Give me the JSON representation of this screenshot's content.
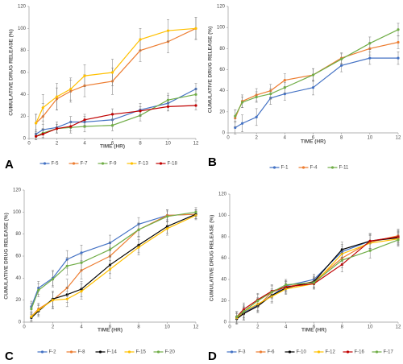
{
  "chart_data": [
    {
      "type": "line",
      "panel": "A",
      "x_label": "TIME (HR)",
      "y_label": "CUMULATIVE DRUG RELEASE (%)",
      "x": [
        0.5,
        1,
        2,
        3,
        4,
        6,
        8,
        10,
        12
      ],
      "xlim": [
        0,
        12
      ],
      "xticks": [
        0,
        2,
        4,
        6,
        8,
        10,
        12
      ],
      "ylim": [
        0,
        120
      ],
      "yticks": [
        0,
        20,
        40,
        60,
        80,
        100,
        120
      ],
      "grid": false,
      "series": [
        {
          "name": "F-5",
          "color": "#4472c4",
          "values": [
            4,
            8,
            10,
            15,
            15,
            17,
            26,
            32,
            45
          ],
          "errors": [
            4,
            5,
            5,
            5,
            5,
            6,
            6,
            7,
            5
          ]
        },
        {
          "name": "F-7",
          "color": "#ed7d31",
          "values": [
            14,
            20,
            36,
            43,
            48,
            52,
            80,
            88,
            100
          ],
          "errors": [
            8,
            12,
            10,
            10,
            10,
            12,
            10,
            10,
            10
          ]
        },
        {
          "name": "F-9",
          "color": "#70ad47",
          "values": [
            2,
            5,
            9,
            10,
            11,
            12,
            21,
            35,
            40
          ],
          "errors": [
            3,
            4,
            4,
            5,
            5,
            5,
            5,
            6,
            5
          ]
        },
        {
          "name": "F-13",
          "color": "#ffc000",
          "values": [
            14,
            28,
            38,
            45,
            57,
            60,
            90,
            98,
            100
          ],
          "errors": [
            8,
            12,
            12,
            10,
            10,
            12,
            10,
            10,
            10
          ]
        },
        {
          "name": "F-18",
          "color": "#c00000",
          "values": [
            2,
            4,
            9,
            11,
            17,
            22,
            25,
            29,
            30
          ],
          "errors": [
            3,
            4,
            4,
            4,
            5,
            5,
            4,
            4,
            4
          ]
        }
      ]
    },
    {
      "type": "line",
      "panel": "B",
      "x_label": "TIME (HR)",
      "y_label": "CUMULATIVE DRUG RELEASE (%)",
      "x": [
        0.5,
        1,
        2,
        3,
        4,
        6,
        8,
        10,
        12
      ],
      "xlim": [
        0,
        12
      ],
      "xticks": [
        0,
        2,
        4,
        6,
        8,
        10,
        12
      ],
      "ylim": [
        0,
        120
      ],
      "yticks": [
        0,
        20,
        40,
        60,
        80,
        100,
        120
      ],
      "grid": false,
      "series": [
        {
          "name": "F-1",
          "color": "#4472c4",
          "values": [
            5,
            9,
            15,
            33,
            37,
            43,
            64,
            71,
            71
          ],
          "errors": [
            6,
            8,
            8,
            6,
            6,
            7,
            6,
            6,
            6
          ]
        },
        {
          "name": "F-4",
          "color": "#ed7d31",
          "values": [
            14,
            30,
            36,
            40,
            50,
            55,
            71,
            80,
            86
          ],
          "errors": [
            8,
            6,
            6,
            6,
            6,
            6,
            5,
            6,
            6
          ]
        },
        {
          "name": "F-11",
          "color": "#70ad47",
          "values": [
            16,
            29,
            34,
            37,
            43,
            55,
            70,
            85,
            98
          ],
          "errors": [
            6,
            5,
            5,
            5,
            5,
            6,
            5,
            6,
            6
          ]
        }
      ]
    },
    {
      "type": "line",
      "panel": "C",
      "x_label": "TIME (HR)",
      "y_label": "CUMULATIVE DRUG RELEASE (%)",
      "x": [
        0.5,
        1,
        2,
        3,
        4,
        6,
        8,
        10,
        12
      ],
      "xlim": [
        0,
        12
      ],
      "xticks": [
        0,
        2,
        4,
        6,
        8,
        10,
        12
      ],
      "ylim": [
        0,
        120
      ],
      "yticks": [
        0,
        20,
        40,
        60,
        80,
        100,
        120
      ],
      "grid": false,
      "series": [
        {
          "name": "F-2",
          "color": "#4472c4",
          "values": [
            14,
            31,
            40,
            57,
            63,
            72,
            89,
            97,
            98
          ],
          "errors": [
            5,
            6,
            7,
            8,
            7,
            7,
            6,
            5,
            4
          ]
        },
        {
          "name": "F-8",
          "color": "#ed7d31",
          "values": [
            5,
            12,
            20,
            31,
            47,
            60,
            84,
            97,
            98
          ],
          "errors": [
            4,
            5,
            8,
            8,
            8,
            8,
            6,
            5,
            4
          ]
        },
        {
          "name": "F-14",
          "color": "#000000",
          "values": [
            4,
            10,
            21,
            25,
            30,
            52,
            70,
            87,
            98
          ],
          "errors": [
            4,
            5,
            7,
            7,
            7,
            8,
            7,
            6,
            4
          ]
        },
        {
          "name": "F-15",
          "color": "#ffc000",
          "values": [
            5,
            11,
            20,
            21,
            28,
            48,
            68,
            85,
            97
          ],
          "errors": [
            4,
            5,
            7,
            7,
            7,
            8,
            7,
            6,
            4
          ]
        },
        {
          "name": "F-20",
          "color": "#70ad47",
          "values": [
            12,
            29,
            39,
            51,
            54,
            66,
            84,
            96,
            100
          ],
          "errors": [
            5,
            6,
            7,
            8,
            7,
            7,
            6,
            5,
            4
          ]
        }
      ]
    },
    {
      "type": "line",
      "panel": "D",
      "x_label": "TIME (HR)",
      "y_label": "CUMULATIVE DRUG RELEASE (%)",
      "x": [
        0.5,
        1,
        2,
        3,
        4,
        6,
        8,
        10,
        12
      ],
      "xlim": [
        0,
        12
      ],
      "xticks": [
        0,
        2,
        4,
        6,
        8,
        10,
        12
      ],
      "ylim": [
        0,
        120
      ],
      "yticks": [
        0,
        20,
        40,
        60,
        80,
        100,
        120
      ],
      "grid": false,
      "series": [
        {
          "name": "F-3",
          "color": "#4472c4",
          "values": [
            5,
            9,
            16,
            25,
            34,
            40,
            66,
            76,
            80
          ],
          "errors": [
            5,
            6,
            6,
            6,
            5,
            5,
            7,
            7,
            6
          ]
        },
        {
          "name": "F-6",
          "color": "#ed7d31",
          "values": [
            4,
            8,
            15,
            28,
            33,
            38,
            60,
            75,
            81
          ],
          "errors": [
            5,
            6,
            6,
            6,
            5,
            5,
            7,
            7,
            6
          ]
        },
        {
          "name": "F-10",
          "color": "#000000",
          "values": [
            3,
            8,
            15,
            25,
            32,
            38,
            68,
            76,
            79
          ],
          "errors": [
            5,
            6,
            6,
            6,
            5,
            5,
            7,
            7,
            6
          ]
        },
        {
          "name": "F-12",
          "color": "#ffc000",
          "values": [
            4,
            10,
            17,
            24,
            31,
            36,
            64,
            74,
            78
          ],
          "errors": [
            5,
            6,
            6,
            6,
            5,
            5,
            7,
            7,
            6
          ]
        },
        {
          "name": "F-16",
          "color": "#c00000",
          "values": [
            5,
            12,
            21,
            29,
            33,
            36,
            54,
            76,
            80
          ],
          "errors": [
            5,
            6,
            6,
            6,
            5,
            5,
            7,
            7,
            6
          ]
        },
        {
          "name": "F-17",
          "color": "#70ad47",
          "values": [
            5,
            10,
            20,
            28,
            35,
            37,
            58,
            67,
            77
          ],
          "errors": [
            5,
            6,
            6,
            6,
            5,
            5,
            7,
            7,
            6
          ]
        }
      ]
    }
  ]
}
